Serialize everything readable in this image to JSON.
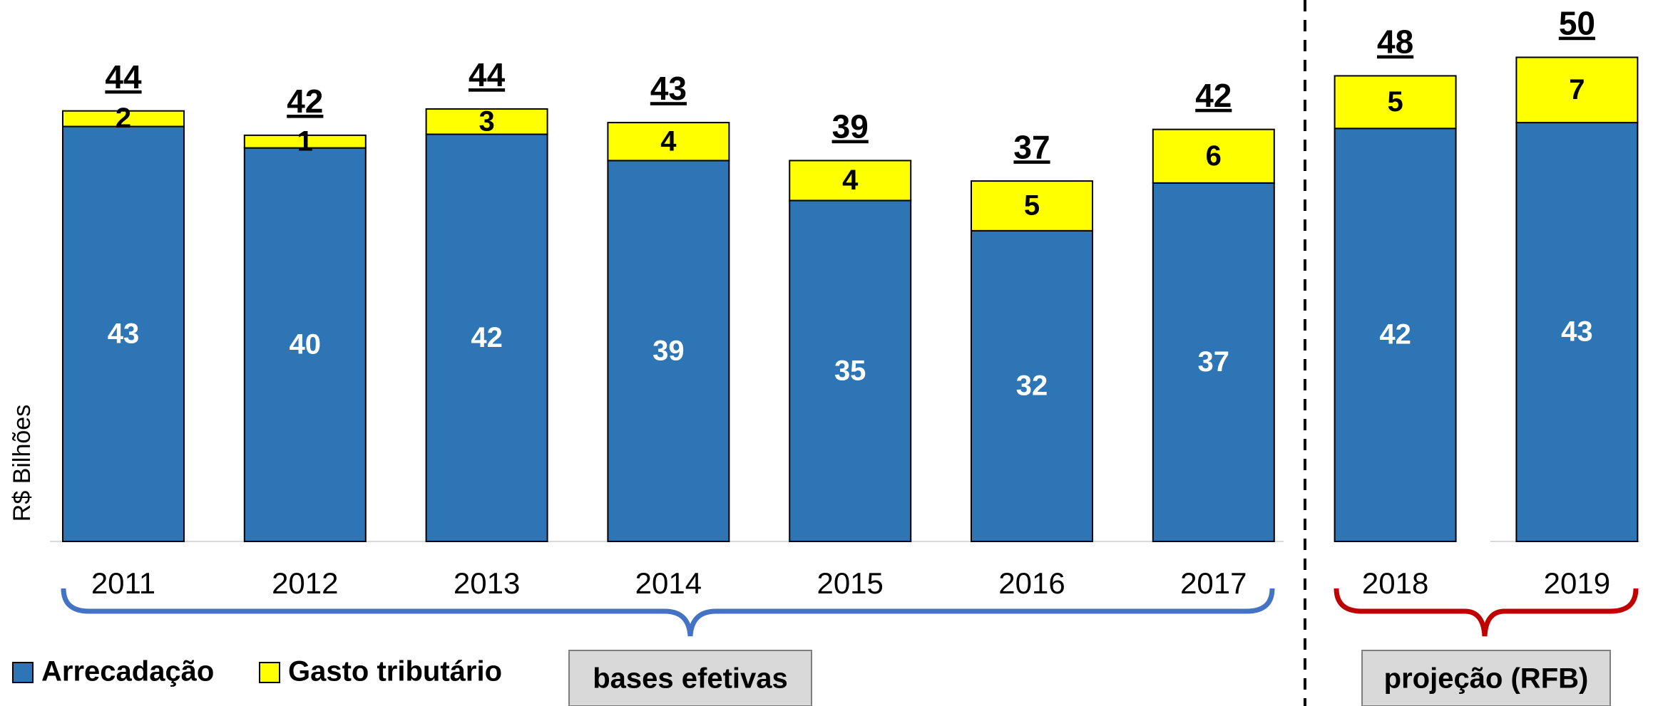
{
  "chart_data": {
    "type": "stacked_bar",
    "y_label": "R$ Bilhões",
    "categories": [
      "2011",
      "2012",
      "2013",
      "2014",
      "2015",
      "2016",
      "2017",
      "2018",
      "2019"
    ],
    "series": [
      {
        "name": "Arrecadação",
        "color": "#2e75b6",
        "values": [
          42.6,
          40.4,
          41.8,
          39.1,
          35.0,
          31.9,
          36.8,
          42.4,
          43.0
        ],
        "value_labels": [
          "43",
          "40",
          "42",
          "39",
          "35",
          "32",
          "37",
          "42",
          "43"
        ]
      },
      {
        "name": "Gasto tributário",
        "color": "#ffff00",
        "values": [
          1.6,
          1.3,
          2.6,
          3.9,
          4.1,
          5.1,
          5.5,
          5.4,
          6.7
        ],
        "value_labels": [
          "2",
          "1",
          "3",
          "4",
          "4",
          "5",
          "6",
          "5",
          "7"
        ]
      }
    ],
    "total_labels": [
      "44",
      "42",
      "44",
      "43",
      "39",
      "37",
      "42",
      "48",
      "50"
    ],
    "ylim": [
      0,
      55
    ],
    "groups": [
      "bases efetivas",
      "projeção (RFB)"
    ]
  }
}
